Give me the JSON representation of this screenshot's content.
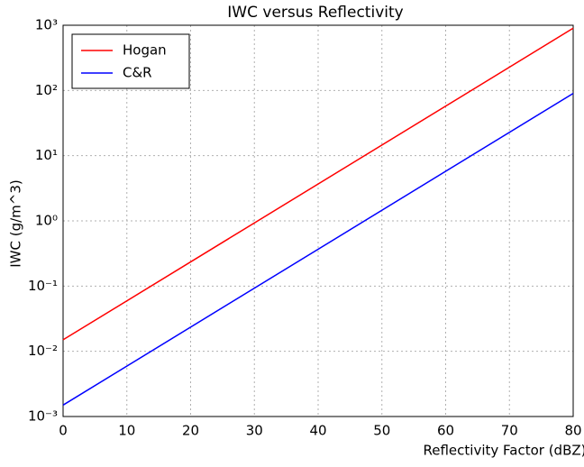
{
  "chart_data": {
    "type": "line",
    "title": "IWC versus Reflectivity",
    "x_label": "Reflectivity Factor (dBZ)",
    "y_label": "IWC (g/m^3)",
    "x": [
      0,
      80
    ],
    "series": [
      {
        "name": "Hogan",
        "color": "#ff0000",
        "values": [
          0.015,
          900
        ]
      },
      {
        "name": "C&R",
        "color": "#0000ff",
        "values": [
          0.0015,
          90
        ]
      }
    ],
    "xlim": [
      0,
      80
    ],
    "xticks": [
      0,
      10,
      20,
      30,
      40,
      50,
      60,
      70,
      80
    ],
    "ylim": [
      0.001,
      1000
    ],
    "y_log": true,
    "yticks": [
      {
        "value": 0.001,
        "label": "10⁻³"
      },
      {
        "value": 0.01,
        "label": "10⁻²"
      },
      {
        "value": 0.1,
        "label": "10⁻¹"
      },
      {
        "value": 1,
        "label": "10⁰"
      },
      {
        "value": 10,
        "label": "10¹"
      },
      {
        "value": 100,
        "label": "10²"
      },
      {
        "value": 1000,
        "label": "10³"
      }
    ],
    "grid": true,
    "legend": "upper left"
  }
}
